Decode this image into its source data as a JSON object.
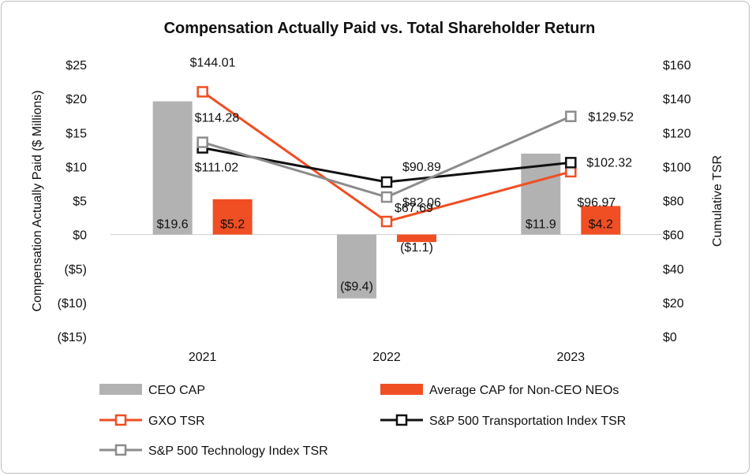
{
  "chart_data": {
    "type": "bar",
    "title": "Compensation Actually Paid vs. Total Shareholder Return",
    "categories": [
      "2021",
      "2022",
      "2023"
    ],
    "ylabel": "Compensation Actually Paid ($ Millions)",
    "y2label": "Cumulative TSR",
    "ylim": [
      -15,
      25
    ],
    "y2lim": [
      0,
      160
    ],
    "yticks": [
      "($15)",
      "($10)",
      "($5)",
      "$0",
      "$5",
      "$10",
      "$15",
      "$20",
      "$25"
    ],
    "ytick_values": [
      -15,
      -10,
      -5,
      0,
      5,
      10,
      15,
      20,
      25
    ],
    "y2ticks": [
      "$0",
      "$20",
      "$40",
      "$60",
      "$80",
      "$100",
      "$120",
      "$140",
      "$160"
    ],
    "y2tick_values": [
      0,
      20,
      40,
      60,
      80,
      100,
      120,
      140,
      160
    ],
    "bar_series": [
      {
        "name": "CEO CAP",
        "color": "#b2b2b2",
        "values": [
          19.6,
          -9.4,
          11.9
        ],
        "labels": [
          "$19.6",
          "($9.4)",
          "$11.9"
        ]
      },
      {
        "name": "Average CAP for Non-CEO NEOs",
        "color": "#f04e23",
        "values": [
          5.2,
          -1.1,
          4.2
        ],
        "labels": [
          "$5.2",
          "($1.1)",
          "$4.2"
        ]
      }
    ],
    "line_series": [
      {
        "name": "GXO TSR",
        "color": "#f04e23",
        "values": [
          144.01,
          67.69,
          96.97
        ],
        "labels": [
          "$144.01",
          "$67.69",
          "$96.97"
        ]
      },
      {
        "name": "S&P 500 Transportation Index TSR",
        "color": "#111111",
        "values": [
          111.02,
          90.89,
          102.32
        ],
        "labels": [
          "$111.02",
          "$90.89",
          "$102.32"
        ]
      },
      {
        "name": "S&P 500 Technology Index TSR",
        "color": "#8c8c8c",
        "values": [
          114.28,
          82.06,
          129.52
        ],
        "labels": [
          "$114.28",
          "$82.06",
          "$129.52"
        ]
      }
    ],
    "legend_position": "bottom"
  }
}
